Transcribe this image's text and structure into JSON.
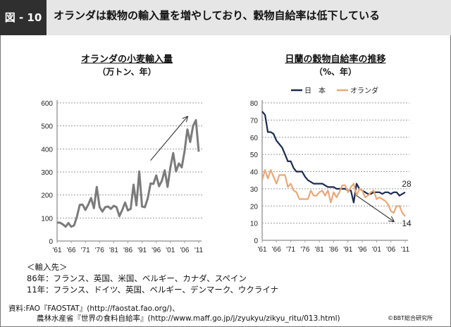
{
  "header": {
    "figure_number": "図 - 10",
    "title": "オランダは穀物の輸入量を増やしており、穀物自給率は低下している"
  },
  "colors": {
    "header_dark": "#2f2f2f",
    "header_light": "#e6e6e6",
    "wheat_line": "#7b7b7b",
    "japan_line": "#1b2a4e",
    "netherlands_line": "#e8a878"
  },
  "chart_data": [
    {
      "type": "line",
      "title": "オランダの小麦輸入量",
      "subtitle": "（万トン、年）",
      "xlabel": "",
      "ylabel": "",
      "x": [
        1961,
        1962,
        1963,
        1964,
        1965,
        1966,
        1967,
        1968,
        1969,
        1970,
        1971,
        1972,
        1973,
        1974,
        1975,
        1976,
        1977,
        1978,
        1979,
        1980,
        1981,
        1982,
        1983,
        1984,
        1985,
        1986,
        1987,
        1988,
        1989,
        1990,
        1991,
        1992,
        1993,
        1994,
        1995,
        1996,
        1997,
        1998,
        1999,
        2000,
        2001,
        2002,
        2003,
        2004,
        2005,
        2006,
        2007,
        2008,
        2009,
        2010,
        2011
      ],
      "series": [
        {
          "name": "小麦輸入量",
          "values": [
            80,
            80,
            73,
            62,
            78,
            62,
            68,
            105,
            157,
            158,
            135,
            158,
            187,
            143,
            235,
            148,
            128,
            147,
            150,
            140,
            153,
            147,
            108,
            135,
            167,
            133,
            140,
            245,
            155,
            302,
            150,
            147,
            185,
            250,
            248,
            285,
            238,
            262,
            307,
            235,
            320,
            382,
            302,
            337,
            320,
            390,
            485,
            430,
            500,
            525,
            388
          ]
        }
      ],
      "xticks": [
        "'61",
        "'66",
        "'71",
        "'76",
        "'81",
        "'86",
        "'91",
        "'96",
        "'01",
        "'06",
        "'11"
      ],
      "yticks": [
        "0",
        "100",
        "200",
        "300",
        "400",
        "500",
        "600"
      ],
      "ylim": [
        0,
        600
      ],
      "grid": "horizontal-dashed",
      "legend": "none",
      "annotations": [
        {
          "type": "arrow",
          "from": [
            1994,
            350
          ],
          "to": [
            2007,
            540
          ],
          "label": ""
        }
      ]
    },
    {
      "type": "line",
      "title": "日蘭の穀物自給率の推移",
      "subtitle": "（%、年）",
      "xlabel": "",
      "ylabel": "",
      "x": [
        1961,
        1962,
        1963,
        1964,
        1965,
        1966,
        1967,
        1968,
        1969,
        1970,
        1971,
        1972,
        1973,
        1974,
        1975,
        1976,
        1977,
        1978,
        1979,
        1980,
        1981,
        1982,
        1983,
        1984,
        1985,
        1986,
        1987,
        1988,
        1989,
        1990,
        1991,
        1992,
        1993,
        1994,
        1995,
        1996,
        1997,
        1998,
        1999,
        2000,
        2001,
        2002,
        2003,
        2004,
        2005,
        2006,
        2007,
        2008,
        2009,
        2010,
        2011
      ],
      "series": [
        {
          "name": "日　本",
          "values": [
            75,
            73,
            63,
            63,
            62,
            58,
            56,
            54,
            50,
            46,
            46,
            42,
            40,
            40,
            40,
            37,
            35,
            34,
            33,
            33,
            33,
            33,
            32,
            31,
            31,
            31,
            30,
            30,
            30,
            30,
            29,
            29,
            22,
            33,
            30,
            29,
            28,
            27,
            27,
            28,
            28,
            28,
            27,
            28,
            28,
            27,
            28,
            28,
            26,
            27,
            28
          ]
        },
        {
          "name": "オランダ",
          "values": [
            35,
            41,
            36,
            41,
            37,
            33,
            38,
            38,
            38,
            31,
            33,
            29,
            28,
            24,
            24,
            24,
            24,
            29,
            26,
            26,
            28,
            29,
            26,
            29,
            22,
            28,
            25,
            28,
            32,
            32,
            28,
            31,
            33,
            26,
            30,
            29,
            25,
            26,
            28,
            29,
            24,
            25,
            24,
            23,
            21,
            17,
            16,
            20,
            20,
            16,
            14
          ]
        }
      ],
      "xticks": [
        "'61",
        "'66",
        "'71",
        "'76",
        "'81",
        "'86",
        "'91",
        "'96",
        "'01",
        "'06",
        "'11"
      ],
      "yticks": [
        "0",
        "10",
        "20",
        "30",
        "40",
        "50",
        "60",
        "70",
        "80"
      ],
      "ylim": [
        0,
        80
      ],
      "grid": "horizontal-dashed",
      "legend": "top",
      "data_labels": [
        {
          "series": "日　本",
          "text": "28"
        },
        {
          "series": "オランダ",
          "text": "14"
        }
      ],
      "annotations": [
        {
          "type": "arrow",
          "from": [
            1994,
            26
          ],
          "to": [
            2007,
            11
          ],
          "label": ""
        }
      ]
    }
  ],
  "notes": {
    "heading": "＜輸入先＞",
    "line1": "86年：フランス、英国、米国、ベルギー、カナダ、スペイン",
    "line2": "11年：フランス、ドイツ、英国、ベルギー、デンマーク、ウクライナ"
  },
  "source": {
    "line1": "資料:FAO『FAOSTAT』(http://faostat.fao.org/)、",
    "line2": "農林水産省『世界の食料自給率』(http://www.maff.go.jp/j/zyukyu/zikyu_ritu/013.html)",
    "copyright": "©BBT総合研究所"
  }
}
